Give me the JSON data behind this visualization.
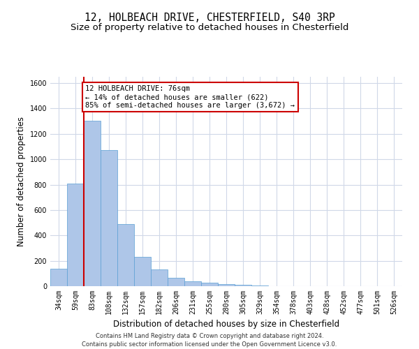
{
  "title1": "12, HOLBEACH DRIVE, CHESTERFIELD, S40 3RP",
  "title2": "Size of property relative to detached houses in Chesterfield",
  "xlabel": "Distribution of detached houses by size in Chesterfield",
  "ylabel": "Number of detached properties",
  "categories": [
    "34sqm",
    "59sqm",
    "83sqm",
    "108sqm",
    "132sqm",
    "157sqm",
    "182sqm",
    "206sqm",
    "231sqm",
    "255sqm",
    "280sqm",
    "305sqm",
    "329sqm",
    "354sqm",
    "378sqm",
    "403sqm",
    "428sqm",
    "452sqm",
    "477sqm",
    "501sqm",
    "526sqm"
  ],
  "values": [
    140,
    810,
    1305,
    1075,
    490,
    230,
    130,
    65,
    38,
    25,
    15,
    10,
    5,
    2,
    2,
    2,
    1,
    1,
    1,
    1,
    1
  ],
  "bar_color": "#aec6e8",
  "bar_edge_color": "#5a9fd4",
  "vline_x": 1.5,
  "vline_color": "#cc0000",
  "annotation_line1": "12 HOLBEACH DRIVE: 76sqm",
  "annotation_line2": "← 14% of detached houses are smaller (622)",
  "annotation_line3": "85% of semi-detached houses are larger (3,672) →",
  "annotation_box_color": "#ffffff",
  "annotation_box_edge_color": "#cc0000",
  "ylim": [
    0,
    1650
  ],
  "yticks": [
    0,
    200,
    400,
    600,
    800,
    1000,
    1200,
    1400,
    1600
  ],
  "footer1": "Contains HM Land Registry data © Crown copyright and database right 2024.",
  "footer2": "Contains public sector information licensed under the Open Government Licence v3.0.",
  "bg_color": "#ffffff",
  "grid_color": "#d0d8e8",
  "title_fontsize": 10.5,
  "subtitle_fontsize": 9.5,
  "tick_fontsize": 7,
  "label_fontsize": 8.5,
  "annotation_fontsize": 7.5,
  "footer_fontsize": 6
}
